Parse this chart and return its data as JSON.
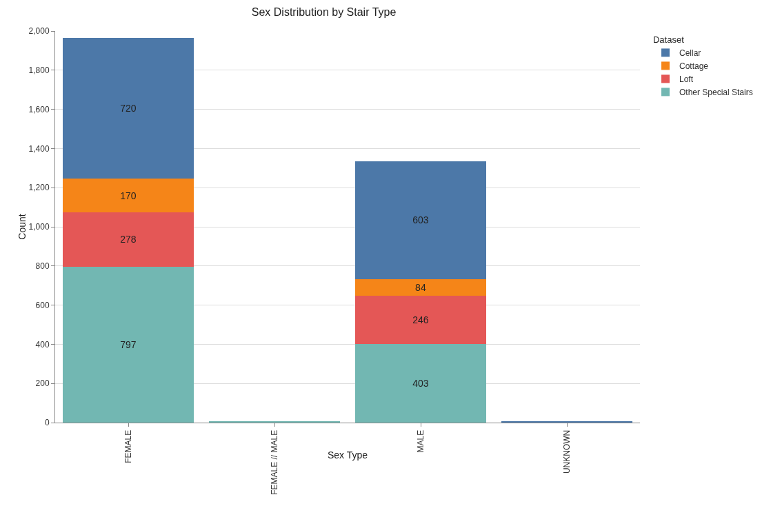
{
  "chart_data": {
    "type": "bar",
    "title": "Sex Distribution by Stair Type",
    "xlabel": "Sex Type",
    "ylabel": "Count",
    "legend_title": "Dataset",
    "categories": [
      "FEMALE",
      "FEMALE // MALE",
      "MALE",
      "UNKNOWN"
    ],
    "stacked": true,
    "ylim": [
      0,
      2000
    ],
    "yticks": [
      0,
      {
        "value": 200,
        "label": "200"
      },
      {
        "value": 400,
        "label": "400"
      },
      {
        "value": 600,
        "label": "600"
      },
      {
        "value": 800,
        "label": "800"
      },
      {
        "value": 1000,
        "label": "1,000"
      },
      {
        "value": 1200,
        "label": "1,200"
      },
      {
        "value": 1400,
        "label": "1,400"
      },
      {
        "value": 1600,
        "label": "1,600"
      },
      {
        "value": 1800,
        "label": "1,800"
      },
      {
        "value": 2000,
        "label": "2,000"
      }
    ],
    "grid": "y",
    "legend": "top right",
    "series": [
      {
        "name": "Other Special Stairs",
        "color": "#72b7b2",
        "values": [
          797,
          4,
          403,
          null
        ],
        "value_labels": [
          "797",
          null,
          "403",
          null
        ]
      },
      {
        "name": "Loft",
        "color": "#e45756",
        "values": [
          278,
          null,
          246,
          null
        ],
        "value_labels": [
          "278",
          null,
          "246",
          null
        ]
      },
      {
        "name": "Cottage",
        "color": "#f58518",
        "values": [
          170,
          null,
          84,
          null
        ],
        "value_labels": [
          "170",
          null,
          "84",
          null
        ]
      },
      {
        "name": "Cellar",
        "color": "#4c78a8",
        "values": [
          720,
          null,
          603,
          4
        ],
        "value_labels": [
          "720",
          null,
          "603",
          null
        ]
      }
    ]
  }
}
